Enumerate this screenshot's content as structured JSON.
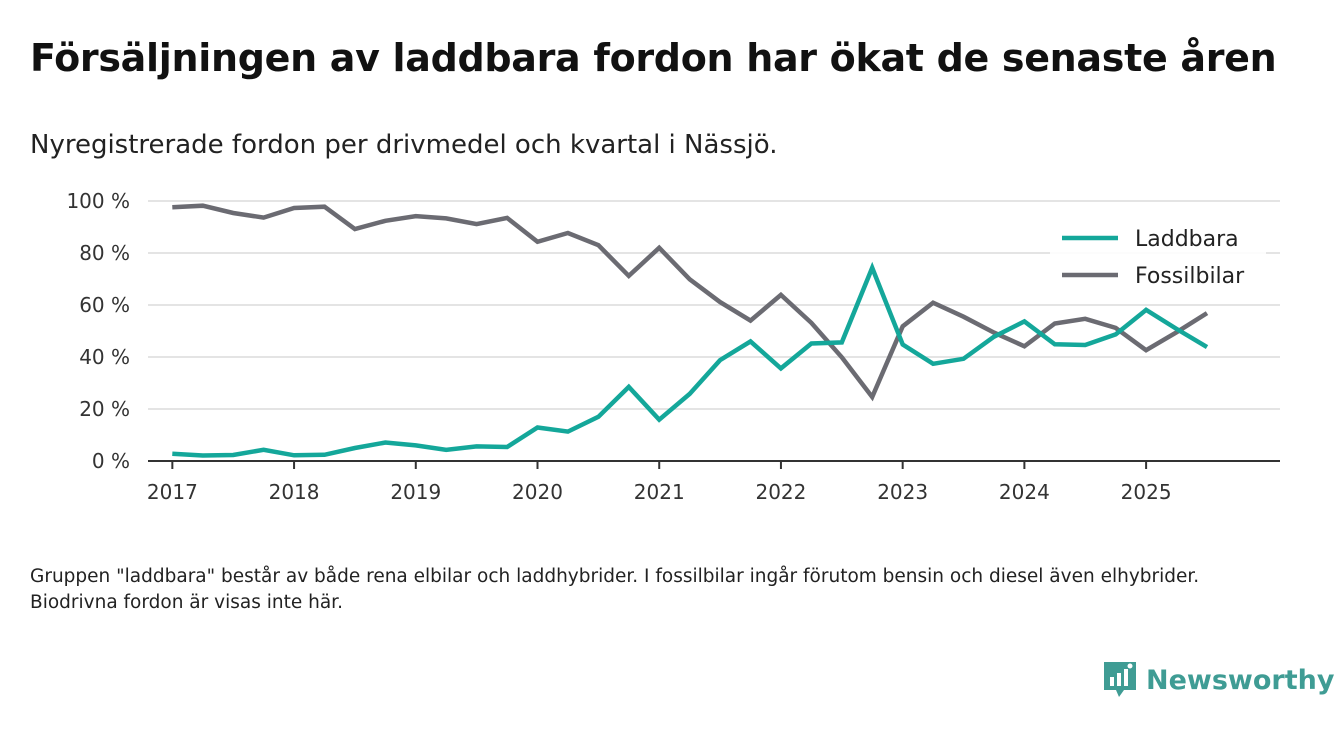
{
  "title": "Försäljningen av laddbara fordon har ökat de senaste åren",
  "subtitle": "Nyregistrerade fordon per drivmedel och kvartal i Nässjö.",
  "footnote": "Gruppen \"laddbara\" består av både rena elbilar och laddhybrider. I fossilbilar ingår förutom bensin och diesel även elhybrider. Biodrivna fordon är visas inte här.",
  "brand": {
    "name": "Newsworthy",
    "icon": "newsworthy-logo-icon"
  },
  "chart_data": {
    "type": "line",
    "title": "Försäljningen av laddbara fordon har ökat de senaste åren",
    "xlabel": "",
    "ylabel": "",
    "ylim": [
      0,
      100
    ],
    "xlim": [
      2016.8,
      2026.1
    ],
    "yticks": [
      0,
      20,
      40,
      60,
      80,
      100
    ],
    "ytick_labels": [
      "0 %",
      "20 %",
      "40 %",
      "60 %",
      "80 %",
      "100 %"
    ],
    "xticks": [
      2017,
      2018,
      2019,
      2020,
      2021,
      2022,
      2023,
      2024,
      2025
    ],
    "xtick_labels": [
      "2017",
      "2018",
      "2019",
      "2020",
      "2021",
      "2022",
      "2023",
      "2024",
      "2025"
    ],
    "grid": true,
    "legend_position": "top-right",
    "x": [
      2017,
      2017.25,
      2017.5,
      2017.75,
      2018,
      2018.25,
      2018.5,
      2018.75,
      2019,
      2019.25,
      2019.5,
      2019.75,
      2020,
      2020.25,
      2020.5,
      2020.75,
      2021,
      2021.25,
      2021.5,
      2021.75,
      2022,
      2022.25,
      2022.5,
      2022.75,
      2023,
      2023.25,
      2023.5,
      2023.75,
      2024,
      2024.25,
      2024.5,
      2024.75,
      2025,
      2025.25,
      2025.5
    ],
    "series": [
      {
        "name": "Laddbara",
        "color": "#14a79a",
        "values": [
          2.8,
          2.1,
          2.3,
          4.3,
          2.2,
          2.4,
          5.0,
          7.1,
          6.0,
          4.3,
          5.6,
          5.4,
          12.9,
          11.3,
          17.0,
          28.5,
          15.9,
          25.8,
          38.8,
          46.0,
          35.6,
          45.2,
          45.6,
          74.3,
          44.8,
          37.4,
          39.3,
          47.8,
          53.7,
          44.9,
          44.6,
          48.7,
          58.1,
          50.8,
          43.8
        ]
      },
      {
        "name": "Fossilbilar",
        "color": "#6b6b72",
        "values": [
          97.6,
          98.2,
          95.4,
          93.6,
          97.3,
          97.8,
          89.2,
          92.4,
          94.2,
          93.3,
          91.1,
          93.5,
          84.3,
          87.7,
          83.0,
          71.2,
          82.0,
          69.9,
          61.1,
          54.0,
          63.9,
          53.1,
          39.9,
          24.6,
          51.8,
          60.9,
          55.5,
          49.4,
          44.1,
          52.9,
          54.7,
          51.2,
          42.6,
          49.5,
          56.9
        ]
      }
    ]
  }
}
